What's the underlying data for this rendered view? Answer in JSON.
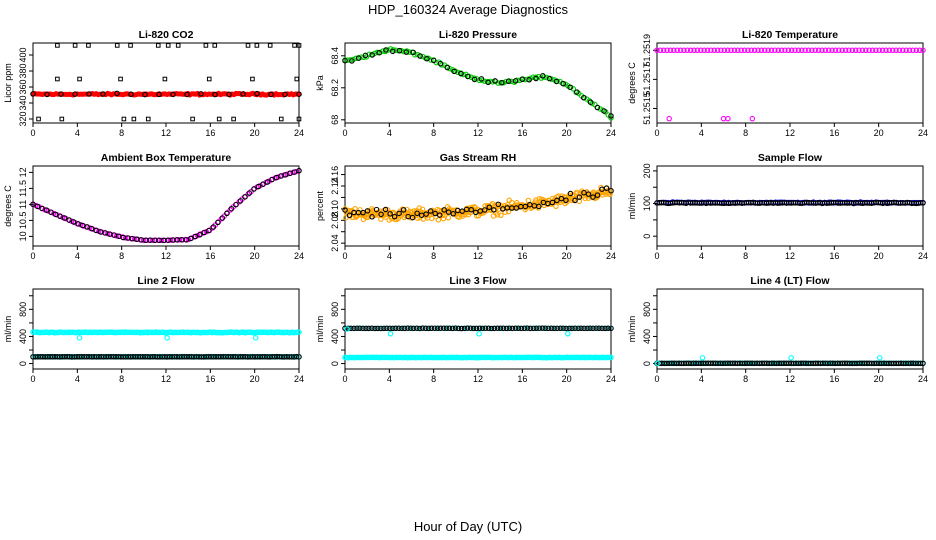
{
  "figure": {
    "title": "HDP_160324  Average Diagnostics",
    "xlabel": "Hour of Day (UTC)"
  },
  "chart_data": [
    {
      "type": "scatter",
      "title": "Li-820 CO2",
      "ylabel": "Licor ppm",
      "xlim": [
        0,
        24
      ],
      "ylim": [
        315,
        415
      ],
      "xticks": [
        0,
        4,
        8,
        12,
        16,
        20,
        24
      ],
      "yticks": [
        320,
        340,
        360,
        380,
        400
      ],
      "series": [
        {
          "name": "co2",
          "color": "#ff0000",
          "marker": "dot",
          "gen": "flat",
          "n": 140,
          "base": 351,
          "noise": 1.2,
          "amp": 1.5
        },
        {
          "name": "co2-avg",
          "color": "#000000",
          "marker": "circle",
          "gen": "flat",
          "n": 20,
          "base": 351,
          "noise": 1.0
        },
        {
          "name": "co2-outliers",
          "color": "#000000",
          "marker": "square",
          "x": [
            2.2,
            3.8,
            5.0,
            7.6,
            8.8,
            11.3,
            12.2,
            13.1,
            15.6,
            16.4,
            19.4,
            20.2,
            21.4,
            23.6,
            24.0,
            2.2,
            4.2,
            7.9,
            11.9,
            15.9,
            19.8,
            23.8,
            0.5,
            2.6,
            8.2,
            9.1,
            10.4,
            14.4,
            16.8,
            18.1,
            22.4,
            24.0
          ],
          "y": [
            412,
            412,
            412,
            412,
            412,
            412,
            412,
            412,
            412,
            412,
            412,
            412,
            412,
            412,
            412,
            370,
            370,
            370,
            370,
            370,
            370,
            370,
            320,
            320,
            320,
            320,
            320,
            320,
            320,
            320,
            320,
            320
          ]
        }
      ]
    },
    {
      "type": "scatter",
      "title": "Li-820 Pressure",
      "ylabel": "kPa",
      "xlim": [
        0,
        24
      ],
      "ylim": [
        67.98,
        68.48
      ],
      "xticks": [
        0,
        4,
        8,
        12,
        16,
        20,
        24
      ],
      "yticks": [
        68.0,
        68.2,
        68.4
      ],
      "series": [
        {
          "name": "pressure",
          "color": "#00cc00",
          "marker": "circle",
          "gen": "curve",
          "n": 100,
          "noise": 0.008,
          "curve_x": [
            0,
            2,
            4,
            6,
            8,
            10,
            12,
            14,
            16,
            18,
            19,
            20,
            22,
            24
          ],
          "curve_y": [
            68.37,
            68.4,
            68.44,
            68.42,
            68.37,
            68.3,
            68.25,
            68.23,
            68.25,
            68.27,
            68.25,
            68.22,
            68.12,
            68.02
          ]
        },
        {
          "name": "pressure-avg",
          "color": "#000000",
          "marker": "circle",
          "gen": "curve",
          "n": 40,
          "noise": 0.01,
          "curve_x": [
            0,
            2,
            4,
            6,
            8,
            10,
            12,
            14,
            16,
            18,
            19,
            20,
            22,
            24
          ],
          "curve_y": [
            68.37,
            68.4,
            68.44,
            68.42,
            68.37,
            68.3,
            68.25,
            68.23,
            68.25,
            68.27,
            68.25,
            68.22,
            68.12,
            68.02
          ]
        }
      ]
    },
    {
      "type": "scatter",
      "title": "Li-820 Temperature",
      "ylabel": "degrees C",
      "xlim": [
        0,
        24
      ],
      "ylim": [
        51.2514,
        51.25195
      ],
      "xticks": [
        0,
        4,
        8,
        12,
        16,
        20,
        24
      ],
      "yticks": [
        51.2515,
        51.2517,
        51.2519
      ],
      "ytick_labels": [
        "51.2515",
        "51.2517",
        "51.2519"
      ],
      "series": [
        {
          "name": "temp",
          "color": "#ff00ff",
          "marker": "circle",
          "gen": "flat",
          "n": 80,
          "base": 51.2519,
          "noise": 0
        },
        {
          "name": "temp-low",
          "color": "#ff00ff",
          "marker": "circle",
          "x": [
            1.1,
            6.0,
            6.4,
            8.6
          ],
          "y": [
            51.25143,
            51.25143,
            51.25143,
            51.25143
          ]
        }
      ]
    },
    {
      "type": "scatter",
      "title": "Ambient Box Temperature",
      "ylabel": "degrees C",
      "xlim": [
        0,
        24
      ],
      "ylim": [
        9.7,
        12.2
      ],
      "xticks": [
        0,
        4,
        8,
        12,
        16,
        20,
        24
      ],
      "yticks": [
        10.0,
        10.5,
        11.0,
        11.5,
        12.0
      ],
      "series": [
        {
          "name": "ambient",
          "color": "#ff00ff",
          "marker": "circle",
          "gen": "curve",
          "n": 90,
          "noise": 0.01,
          "curve_x": [
            0,
            2,
            4,
            6,
            8,
            10,
            12,
            14,
            16,
            18,
            20,
            22,
            24
          ],
          "curve_y": [
            11.0,
            10.7,
            10.4,
            10.15,
            9.98,
            9.88,
            9.88,
            9.9,
            10.2,
            10.9,
            11.5,
            11.85,
            12.05
          ]
        },
        {
          "name": "ambient-avg",
          "color": "#000000",
          "marker": "circle",
          "gen": "curve",
          "n": 60,
          "noise": 0.008,
          "curve_x": [
            0,
            2,
            4,
            6,
            8,
            10,
            12,
            14,
            16,
            18,
            20,
            22,
            24
          ],
          "curve_y": [
            11.0,
            10.7,
            10.4,
            10.15,
            9.98,
            9.88,
            9.88,
            9.9,
            10.2,
            10.9,
            11.5,
            11.85,
            12.05
          ]
        }
      ]
    },
    {
      "type": "scatter",
      "title": "Gas Stream RH",
      "ylabel": "percent",
      "xlim": [
        0,
        24
      ],
      "ylim": [
        2.035,
        2.175
      ],
      "xticks": [
        0,
        4,
        8,
        12,
        16,
        20,
        24
      ],
      "yticks": [
        2.04,
        2.06,
        2.08,
        2.1,
        2.12,
        2.14,
        2.16
      ],
      "ytick_labels": [
        "2.04",
        "",
        "2.08",
        "2.10",
        "",
        "2.14",
        "2.16"
      ],
      "series": [
        {
          "name": "rh",
          "color": "#ffa500",
          "marker": "circle",
          "gen": "curve",
          "n": 320,
          "noise": 0.012,
          "curve_x": [
            0,
            6,
            12,
            18,
            24
          ],
          "curve_y": [
            2.092,
            2.09,
            2.096,
            2.11,
            2.13
          ]
        },
        {
          "name": "rh-avg",
          "color": "#000000",
          "marker": "circle",
          "gen": "curve",
          "n": 60,
          "noise": 0.009,
          "curve_x": [
            0,
            6,
            12,
            18,
            24
          ],
          "curve_y": [
            2.092,
            2.09,
            2.096,
            2.11,
            2.13
          ]
        }
      ]
    },
    {
      "type": "scatter",
      "title": "Sample Flow",
      "ylabel": "ml/min",
      "xlim": [
        0,
        24
      ],
      "ylim": [
        -30,
        215
      ],
      "xticks": [
        0,
        4,
        8,
        12,
        16,
        20,
        24
      ],
      "yticks": [
        0,
        50,
        100,
        150,
        200
      ],
      "ytick_labels": [
        "0",
        "",
        "100",
        "",
        "200"
      ],
      "series": [
        {
          "name": "flow-blue",
          "color": "#0000ff",
          "marker": "circle",
          "gen": "flat",
          "n": 120,
          "base": 103,
          "noise": 2
        },
        {
          "name": "flow-black",
          "color": "#000000",
          "marker": "circle",
          "gen": "flat",
          "n": 120,
          "base": 102,
          "noise": 2
        }
      ]
    },
    {
      "type": "scatter",
      "title": "Line 2 Flow",
      "ylabel": "ml/min",
      "xlim": [
        0,
        24
      ],
      "ylim": [
        -80,
        1100
      ],
      "xticks": [
        0,
        4,
        8,
        12,
        16,
        20,
        24
      ],
      "yticks": [
        0,
        200,
        400,
        600,
        800,
        1000
      ],
      "ytick_labels": [
        "0",
        "",
        "400",
        "",
        "800",
        ""
      ],
      "series": [
        {
          "name": "line2-high",
          "color": "#00ffff",
          "marker": "circle",
          "gen": "flat",
          "n": 200,
          "base": 460,
          "noise": 6
        },
        {
          "name": "line2-low",
          "color": "#00ffff",
          "marker": "circle",
          "gen": "flat",
          "n": 140,
          "base": 100,
          "noise": 3
        },
        {
          "name": "line2-low-avg",
          "color": "#000000",
          "marker": "circle",
          "gen": "flat",
          "n": 110,
          "base": 100,
          "noise": 2
        },
        {
          "name": "line2-dips",
          "color": "#00ffff",
          "marker": "circle",
          "x": [
            4.2,
            12.1,
            20.1
          ],
          "y": [
            380,
            380,
            380
          ]
        }
      ]
    },
    {
      "type": "scatter",
      "title": "Line 3 Flow",
      "ylabel": "ml/min",
      "xlim": [
        0,
        24
      ],
      "ylim": [
        -80,
        1100
      ],
      "xticks": [
        0,
        4,
        8,
        12,
        16,
        20,
        24
      ],
      "yticks": [
        0,
        200,
        400,
        600,
        800,
        1000
      ],
      "ytick_labels": [
        "0",
        "",
        "400",
        "",
        "800",
        ""
      ],
      "series": [
        {
          "name": "line3-low",
          "color": "#00ffff",
          "marker": "circle",
          "gen": "flat",
          "n": 220,
          "base": 90,
          "noise": 4
        },
        {
          "name": "line3-high",
          "color": "#00ffff",
          "marker": "circle",
          "gen": "flat",
          "n": 60,
          "base": 520,
          "noise": 3
        },
        {
          "name": "line3-high-avg",
          "color": "#000000",
          "marker": "circle",
          "gen": "flat",
          "n": 90,
          "base": 520,
          "noise": 3
        },
        {
          "name": "line3-dips",
          "color": "#00ffff",
          "marker": "circle",
          "x": [
            0.2,
            4.1,
            12.1,
            20.1
          ],
          "y": [
            510,
            440,
            440,
            440
          ]
        }
      ]
    },
    {
      "type": "scatter",
      "title": "Line 4 (LT) Flow",
      "ylabel": "ml/min",
      "xlim": [
        0,
        24
      ],
      "ylim": [
        -80,
        1100
      ],
      "xticks": [
        0,
        4,
        8,
        12,
        16,
        20,
        24
      ],
      "yticks": [
        0,
        200,
        400,
        600,
        800,
        1000
      ],
      "ytick_labels": [
        "0",
        "",
        "400",
        "",
        "800",
        ""
      ],
      "series": [
        {
          "name": "line4",
          "color": "#00ffff",
          "marker": "circle",
          "gen": "flat",
          "n": 120,
          "base": 4,
          "noise": 1
        },
        {
          "name": "line4-avg",
          "color": "#000000",
          "marker": "circle",
          "gen": "flat",
          "n": 110,
          "base": 4,
          "noise": 1
        },
        {
          "name": "line4-spikes",
          "color": "#00ffff",
          "marker": "circle",
          "x": [
            4.1,
            12.1,
            20.1
          ],
          "y": [
            85,
            85,
            85
          ]
        },
        {
          "name": "line4-start",
          "color": "#00ffff",
          "marker": "circle",
          "x": [
            0.05
          ],
          "y": [
            4
          ]
        }
      ]
    }
  ]
}
